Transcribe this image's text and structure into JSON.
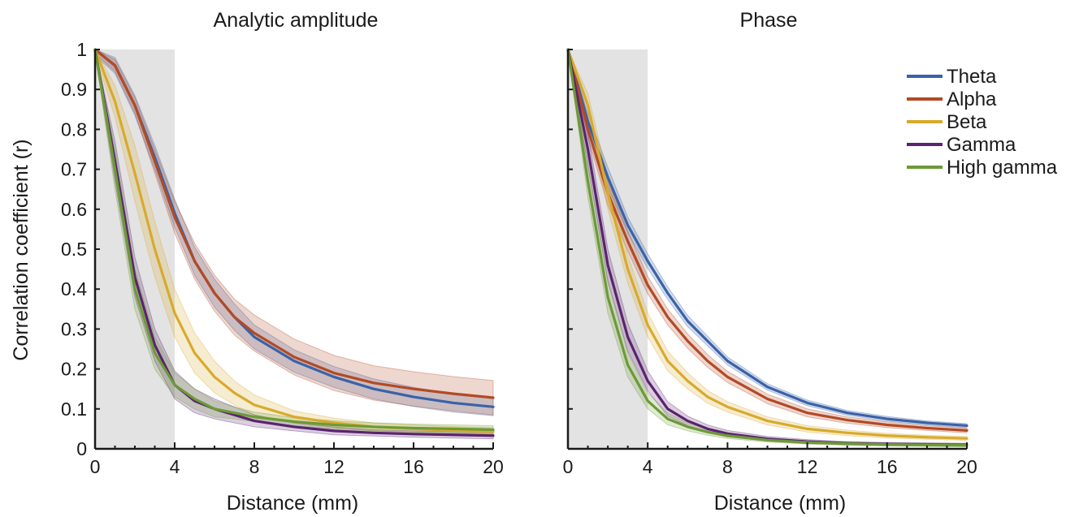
{
  "chart_data": [
    {
      "type": "line",
      "title": "Analytic amplitude",
      "xlabel": "Distance (mm)",
      "ylabel": "Correlation coefficient (r)",
      "xlim": [
        0,
        20
      ],
      "ylim": [
        0,
        1
      ],
      "xticks": [
        "0",
        "4",
        "8",
        "12",
        "16",
        "20"
      ],
      "yticks": [
        "0",
        "0.1",
        "0.2",
        "0.3",
        "0.4",
        "0.5",
        "0.6",
        "0.7",
        "0.8",
        "0.9",
        "1"
      ],
      "shaded_region_x": [
        0,
        4
      ],
      "x": [
        0,
        1,
        2,
        3,
        4,
        5,
        6,
        7,
        8,
        10,
        12,
        14,
        16,
        18,
        20
      ],
      "series": [
        {
          "name": "Theta",
          "color": "#3a62a8",
          "values": [
            1.0,
            0.96,
            0.86,
            0.73,
            0.59,
            0.47,
            0.39,
            0.33,
            0.28,
            0.22,
            0.18,
            0.15,
            0.13,
            0.115,
            0.105
          ],
          "band": [
            0.015,
            0.02,
            0.025,
            0.03,
            0.035,
            0.035,
            0.035,
            0.033,
            0.03,
            0.028,
            0.026,
            0.025,
            0.024,
            0.023,
            0.022
          ]
        },
        {
          "name": "Alpha",
          "color": "#b24a25",
          "values": [
            1.0,
            0.96,
            0.86,
            0.72,
            0.58,
            0.47,
            0.39,
            0.33,
            0.29,
            0.23,
            0.19,
            0.165,
            0.15,
            0.138,
            0.128
          ],
          "band": [
            0.01,
            0.015,
            0.02,
            0.03,
            0.04,
            0.045,
            0.045,
            0.045,
            0.045,
            0.045,
            0.044,
            0.043,
            0.043,
            0.043,
            0.043
          ]
        },
        {
          "name": "Beta",
          "color": "#d8aa2c",
          "values": [
            1.0,
            0.87,
            0.69,
            0.5,
            0.34,
            0.24,
            0.18,
            0.14,
            0.11,
            0.08,
            0.065,
            0.055,
            0.05,
            0.046,
            0.043
          ],
          "band": [
            0.01,
            0.04,
            0.07,
            0.07,
            0.06,
            0.05,
            0.04,
            0.03,
            0.025,
            0.015,
            0.012,
            0.01,
            0.01,
            0.01,
            0.01
          ]
        },
        {
          "name": "Gamma",
          "color": "#5b2370",
          "values": [
            1.0,
            0.72,
            0.43,
            0.26,
            0.16,
            0.12,
            0.1,
            0.085,
            0.07,
            0.055,
            0.045,
            0.04,
            0.037,
            0.035,
            0.033
          ],
          "band": [
            0.01,
            0.05,
            0.05,
            0.04,
            0.035,
            0.03,
            0.025,
            0.02,
            0.015,
            0.01,
            0.01,
            0.008,
            0.008,
            0.008,
            0.008
          ]
        },
        {
          "name": "High gamma",
          "color": "#6c9a35",
          "values": [
            1.0,
            0.7,
            0.4,
            0.24,
            0.16,
            0.125,
            0.1,
            0.09,
            0.08,
            0.068,
            0.06,
            0.055,
            0.052,
            0.05,
            0.048
          ],
          "band": [
            0.01,
            0.05,
            0.05,
            0.04,
            0.03,
            0.025,
            0.02,
            0.015,
            0.012,
            0.01,
            0.01,
            0.01,
            0.01,
            0.01,
            0.01
          ]
        }
      ]
    },
    {
      "type": "line",
      "title": "Phase",
      "xlabel": "Distance (mm)",
      "xlim": [
        0,
        20
      ],
      "ylim": [
        0,
        1
      ],
      "xticks": [
        "0",
        "4",
        "8",
        "12",
        "16",
        "20"
      ],
      "shaded_region_x": [
        0,
        4
      ],
      "x": [
        0,
        1,
        2,
        3,
        4,
        5,
        6,
        7,
        8,
        10,
        12,
        14,
        16,
        18,
        20
      ],
      "series": [
        {
          "name": "Theta",
          "color": "#3a62a8",
          "values": [
            1.0,
            0.82,
            0.68,
            0.56,
            0.47,
            0.39,
            0.32,
            0.27,
            0.22,
            0.155,
            0.115,
            0.09,
            0.075,
            0.065,
            0.058
          ],
          "band": [
            0.005,
            0.02,
            0.025,
            0.02,
            0.018,
            0.016,
            0.014,
            0.012,
            0.01,
            0.008,
            0.007,
            0.006,
            0.006,
            0.005,
            0.005
          ]
        },
        {
          "name": "Alpha",
          "color": "#b24a25",
          "values": [
            1.0,
            0.8,
            0.64,
            0.52,
            0.41,
            0.33,
            0.27,
            0.22,
            0.18,
            0.125,
            0.09,
            0.072,
            0.06,
            0.052,
            0.046
          ],
          "band": [
            0.005,
            0.02,
            0.03,
            0.025,
            0.022,
            0.02,
            0.018,
            0.016,
            0.014,
            0.012,
            0.01,
            0.008,
            0.007,
            0.006,
            0.006
          ]
        },
        {
          "name": "Beta",
          "color": "#d8aa2c",
          "values": [
            1.0,
            0.86,
            0.64,
            0.45,
            0.31,
            0.22,
            0.17,
            0.13,
            0.105,
            0.07,
            0.05,
            0.04,
            0.033,
            0.029,
            0.026
          ],
          "band": [
            0.005,
            0.03,
            0.04,
            0.035,
            0.03,
            0.025,
            0.02,
            0.016,
            0.013,
            0.01,
            0.008,
            0.007,
            0.006,
            0.005,
            0.005
          ]
        },
        {
          "name": "Gamma",
          "color": "#5b2370",
          "values": [
            1.0,
            0.75,
            0.46,
            0.28,
            0.17,
            0.1,
            0.07,
            0.05,
            0.038,
            0.025,
            0.018,
            0.014,
            0.012,
            0.011,
            0.01
          ],
          "band": [
            0.005,
            0.04,
            0.04,
            0.035,
            0.025,
            0.018,
            0.012,
            0.01,
            0.008,
            0.006,
            0.005,
            0.004,
            0.004,
            0.004,
            0.004
          ]
        },
        {
          "name": "High gamma",
          "color": "#6c9a35",
          "values": [
            1.0,
            0.67,
            0.38,
            0.21,
            0.12,
            0.075,
            0.055,
            0.042,
            0.033,
            0.022,
            0.016,
            0.013,
            0.011,
            0.01,
            0.009
          ],
          "band": [
            0.005,
            0.04,
            0.04,
            0.03,
            0.02,
            0.015,
            0.01,
            0.008,
            0.007,
            0.005,
            0.004,
            0.004,
            0.004,
            0.004,
            0.004
          ]
        }
      ]
    }
  ],
  "legend": {
    "placement": "top-right",
    "entries": [
      {
        "label": "Theta",
        "color": "#3a62a8"
      },
      {
        "label": "Alpha",
        "color": "#b24a25"
      },
      {
        "label": "Beta",
        "color": "#d8aa2c"
      },
      {
        "label": "Gamma",
        "color": "#5b2370"
      },
      {
        "label": "High gamma",
        "color": "#6c9a35"
      }
    ]
  },
  "shade_color": "#e3e3e3"
}
